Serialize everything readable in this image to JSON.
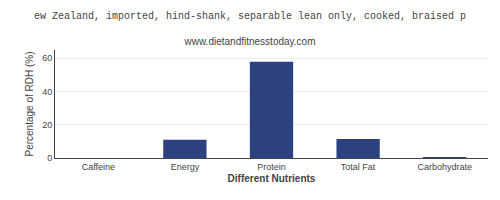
{
  "chart_data": {
    "type": "bar",
    "title": "ew Zealand, imported, hind-shank, separable lean only, cooked, braised p",
    "subtitle": "www.dietandfitnesstoday.com",
    "xlabel": "Different Nutrients",
    "ylabel": "Percentage of RDH (%)",
    "categories": [
      "Caffeine",
      "Energy",
      "Protein",
      "Total Fat",
      "Carbohydrate"
    ],
    "values": [
      0,
      11,
      58,
      11.5,
      0.5
    ],
    "color": "#2d4080",
    "ylim": [
      0,
      65
    ],
    "yticks": [
      0,
      20,
      40,
      60
    ],
    "grid": true
  }
}
